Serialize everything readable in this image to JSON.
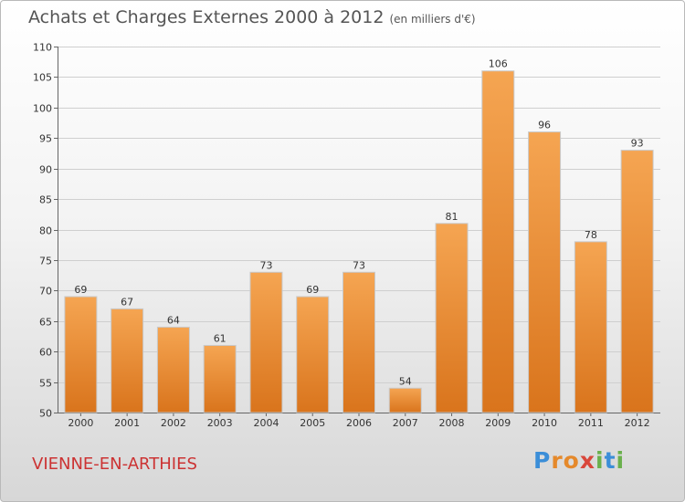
{
  "header": {
    "title": "Achats et Charges Externes 2000 à 2012",
    "subtitle": "(en milliers d'€)"
  },
  "footer": {
    "place": "VIENNE-EN-ARTHIES",
    "logo_letters": [
      "P",
      "r",
      "o",
      "x",
      "i",
      "t",
      "i"
    ],
    "logo_colors": [
      "#3b8ed8",
      "#e5892b",
      "#e5892b",
      "#d9473b",
      "#6ab04c",
      "#3b8ed8",
      "#6ab04c"
    ]
  },
  "colors": {
    "bar_top": "#f5a552",
    "bar_bottom": "#d9741c",
    "grid": "#cfcfcf",
    "text": "#333333",
    "place": "#cc3333"
  },
  "chart_data": {
    "type": "bar",
    "title": "Achats et Charges Externes 2000 à 2012",
    "subtitle": "(en milliers d'€)",
    "categories": [
      "2000",
      "2001",
      "2002",
      "2003",
      "2004",
      "2005",
      "2006",
      "2007",
      "2008",
      "2009",
      "2010",
      "2011",
      "2012"
    ],
    "values": [
      69,
      67,
      64,
      61,
      73,
      69,
      73,
      54,
      81,
      106,
      96,
      78,
      93
    ],
    "data_labels": [
      "69",
      "67",
      "64",
      "61",
      "73",
      "69",
      "73",
      "54",
      "81",
      "106",
      "96",
      "78",
      "93"
    ],
    "ylim": [
      50,
      110
    ],
    "yticks": [
      50,
      55,
      60,
      65,
      70,
      75,
      80,
      85,
      90,
      95,
      100,
      105,
      110
    ],
    "grid": true,
    "xlabel": "",
    "ylabel": ""
  }
}
